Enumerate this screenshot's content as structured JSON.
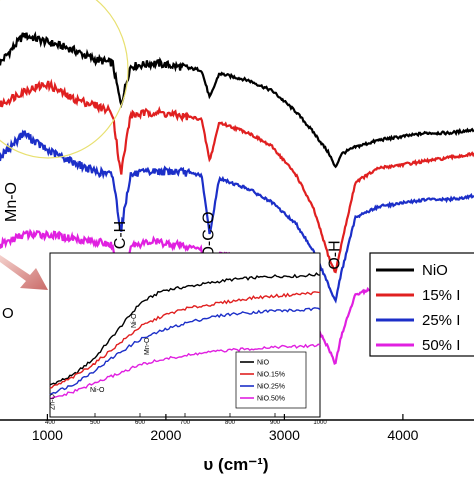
{
  "chart_data": [
    {
      "type": "line",
      "xlabel": "υ (cm⁻¹)",
      "xlim": [
        600,
        4600
      ],
      "x_ticks": [
        {
          "value": 1000,
          "label": "1000"
        },
        {
          "value": 2000,
          "label": "2000"
        },
        {
          "value": 3000,
          "label": "3000"
        },
        {
          "value": 4000,
          "label": "4000"
        }
      ],
      "annotations": [
        {
          "text": "Mn-O",
          "x": 700
        },
        {
          "text": "C-H",
          "x": 1620
        },
        {
          "text": "O-C-O",
          "x": 2370
        },
        {
          "text": "O-H",
          "x": 3430
        }
      ],
      "edge_label": "O",
      "legend": [
        "NiO",
        "15% I",
        "25% I",
        "50% I"
      ],
      "series": [
        {
          "name": "NiO",
          "color": "#000000",
          "x": [
            600,
            800,
            1000,
            1200,
            1400,
            1550,
            1620,
            1700,
            1900,
            2100,
            2300,
            2370,
            2450,
            2700,
            2900,
            3100,
            3250,
            3380,
            3430,
            3480,
            3600,
            3800,
            4000,
            4200,
            4400,
            4600
          ],
          "y": [
            82,
            90,
            88,
            86,
            83,
            82,
            70,
            81,
            82,
            81,
            80,
            72,
            79,
            77,
            74,
            68,
            62,
            56,
            52,
            56,
            58,
            60,
            61,
            62,
            62,
            63
          ]
        },
        {
          "name": "15% I",
          "color": "#e02020",
          "x": [
            600,
            800,
            1000,
            1200,
            1400,
            1550,
            1620,
            1700,
            1900,
            2100,
            2300,
            2370,
            2450,
            2700,
            2900,
            3100,
            3250,
            3380,
            3430,
            3480,
            3600,
            3800,
            4000,
            4200,
            4400,
            4600
          ],
          "y": [
            70,
            74,
            76,
            72,
            70,
            68,
            50,
            67,
            68,
            67,
            66,
            54,
            65,
            62,
            58,
            50,
            40,
            26,
            22,
            30,
            48,
            52,
            53,
            54,
            55,
            56
          ]
        },
        {
          "name": "25% I",
          "color": "#1c2fc8",
          "x": [
            600,
            800,
            1000,
            1200,
            1400,
            1550,
            1620,
            1700,
            1900,
            2100,
            2300,
            2370,
            2450,
            2700,
            2900,
            3100,
            3250,
            3380,
            3430,
            3480,
            3600,
            3800,
            4000,
            4200,
            4400,
            4600
          ],
          "y": [
            55,
            62,
            57,
            54,
            51,
            50,
            34,
            50,
            51,
            51,
            50,
            33,
            49,
            46,
            42,
            36,
            28,
            18,
            14,
            22,
            38,
            41,
            42,
            43,
            43,
            44
          ]
        },
        {
          "name": "50% I",
          "color": "#e020e0",
          "x": [
            600,
            800,
            1000,
            1200,
            1400,
            1550,
            1620,
            1700,
            1900,
            2100,
            2300,
            2370,
            2450,
            2700,
            2900,
            3100,
            3250,
            3380,
            3430,
            3480,
            3600,
            3800,
            4000,
            4200,
            4400,
            4600
          ],
          "y": [
            30,
            33,
            33,
            32,
            31,
            30,
            10,
            30,
            31,
            30,
            29,
            10,
            28,
            26,
            22,
            16,
            8,
            0,
            -4,
            4,
            16,
            18,
            19,
            20,
            20,
            21
          ]
        }
      ],
      "ylim": [
        -20,
        100
      ],
      "grid": false
    },
    {
      "type": "line",
      "xlim": [
        400,
        1000
      ],
      "x_ticks": [
        {
          "value": 400,
          "label": "400"
        },
        {
          "value": 500,
          "label": "500"
        },
        {
          "value": 600,
          "label": "600"
        },
        {
          "value": 700,
          "label": "700"
        },
        {
          "value": 800,
          "label": "800"
        },
        {
          "value": 900,
          "label": "900"
        },
        {
          "value": 1000,
          "label": "1000"
        }
      ],
      "annotations": [
        {
          "text": "Ni-O",
          "x": 480
        },
        {
          "text": "Zn-O",
          "x": 410
        },
        {
          "text": "Mn-O",
          "x": 620
        },
        {
          "text": "Ni-O",
          "x": 560
        }
      ],
      "legend": [
        "NiO",
        "NiO.15%",
        "NiO.25%",
        "NiO.50%"
      ],
      "series": [
        {
          "name": "NiO",
          "color": "#000000",
          "x": [
            400,
            450,
            500,
            550,
            600,
            650,
            700,
            750,
            800,
            850,
            900,
            950,
            1000
          ],
          "y": [
            30,
            35,
            45,
            60,
            75,
            82,
            84,
            86,
            88,
            89,
            90,
            90,
            91
          ]
        },
        {
          "name": "NiO.15%",
          "color": "#e02020",
          "x": [
            400,
            450,
            500,
            550,
            600,
            650,
            700,
            750,
            800,
            850,
            900,
            950,
            1000
          ],
          "y": [
            28,
            34,
            42,
            52,
            62,
            68,
            72,
            74,
            76,
            78,
            79,
            80,
            81
          ]
        },
        {
          "name": "NiO.25%",
          "color": "#1c2fc8",
          "x": [
            400,
            450,
            500,
            550,
            600,
            650,
            700,
            750,
            800,
            850,
            900,
            950,
            1000
          ],
          "y": [
            25,
            30,
            38,
            47,
            55,
            60,
            64,
            67,
            69,
            70,
            71,
            71,
            72
          ]
        },
        {
          "name": "NiO.50%",
          "color": "#e020e0",
          "x": [
            400,
            450,
            500,
            550,
            600,
            650,
            700,
            750,
            800,
            850,
            900,
            950,
            1000
          ],
          "y": [
            22,
            26,
            31,
            36,
            41,
            44,
            46,
            48,
            49,
            50,
            51,
            51,
            52
          ]
        }
      ],
      "ylim": [
        15,
        100
      ],
      "grid": false
    }
  ]
}
